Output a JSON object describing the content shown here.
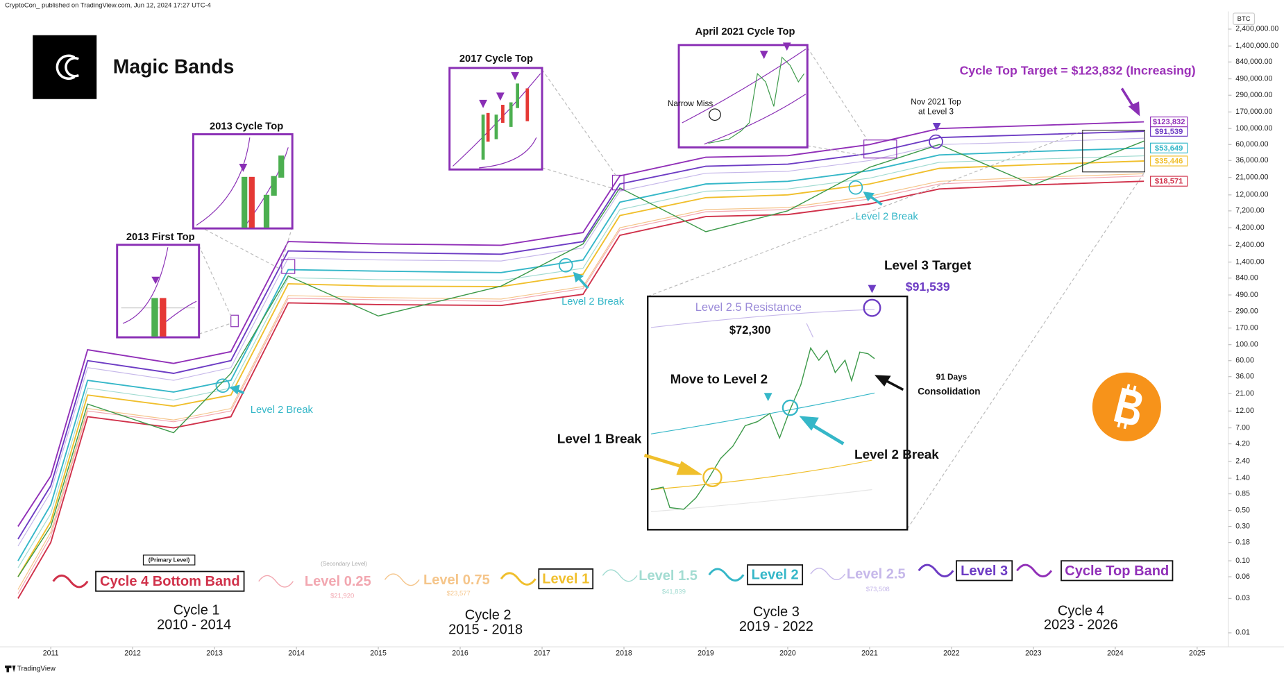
{
  "header": "CryptoCon_ published on TradingView.com, Jun 12, 2024 17:27 UTC-4",
  "footer": "TradingView",
  "chart_data": {
    "type": "line",
    "title": "Magic Bands",
    "symbol": "BTC",
    "log_scale": true,
    "grid": false,
    "price_color": "#3d9a4a",
    "x": [
      2010.6,
      2011.0,
      2011.45,
      2012.5,
      2013.2,
      2013.9,
      2015.0,
      2016.5,
      2017.5,
      2017.95,
      2019.0,
      2020.0,
      2021.0,
      2021.85,
      2023.0,
      2024.35
    ],
    "values": [
      0.06,
      0.3,
      15,
      6,
      40,
      900,
      250,
      650,
      2500,
      15000,
      3700,
      7200,
      29000,
      60000,
      16500,
      67000
    ],
    "series": [
      {
        "name": "Cycle 4 Bottom Band",
        "color": "#d0314a",
        "boxed": true,
        "tag": true,
        "current": 18571,
        "current_label": "$18,571",
        "values": [
          0.03,
          0.18,
          10,
          7,
          10,
          380,
          360,
          350,
          500,
          3300,
          6000,
          6400,
          9000,
          14500,
          16500,
          18571
        ]
      },
      {
        "name": "Level 0.25",
        "color": "#f2a7b0",
        "boxed": false,
        "tag": false,
        "current": 21920,
        "current_label": "$21,920",
        "values": [
          0.035,
          0.22,
          12,
          8.5,
          12,
          440,
          420,
          400,
          600,
          3900,
          7000,
          7500,
          10500,
          17000,
          19500,
          21920
        ]
      },
      {
        "name": "Level 0.75",
        "color": "#f5c58a",
        "boxed": false,
        "tag": false,
        "current": 23577,
        "current_label": "$23,577",
        "values": [
          0.04,
          0.25,
          13,
          9,
          13,
          480,
          450,
          430,
          640,
          4200,
          7500,
          8000,
          11500,
          18500,
          21000,
          23577
        ]
      },
      {
        "name": "Level 1",
        "color": "#f0bf2c",
        "boxed": true,
        "tag": true,
        "current": 35446,
        "current_label": "$35,446",
        "values": [
          0.06,
          0.35,
          20,
          14,
          20,
          700,
          650,
          640,
          950,
          6200,
          11000,
          12000,
          17000,
          28000,
          31500,
          35446
        ]
      },
      {
        "name": "Level 1.5",
        "color": "#a3dcd2",
        "boxed": false,
        "tag": false,
        "current": 41839,
        "current_label": "$41,839",
        "values": [
          0.08,
          0.45,
          25,
          17,
          25,
          850,
          800,
          780,
          1150,
          7500,
          13500,
          14500,
          20500,
          34000,
          37500,
          41839
        ]
      },
      {
        "name": "Level 2",
        "color": "#35b7c8",
        "boxed": true,
        "tag": true,
        "current": 53649,
        "current_label": "$53,649",
        "values": [
          0.1,
          0.6,
          32,
          22,
          32,
          1100,
          1050,
          1000,
          1500,
          9500,
          17000,
          18500,
          26000,
          43000,
          48000,
          53649
        ]
      },
      {
        "name": "Level 2.5",
        "color": "#c6b8ea",
        "boxed": false,
        "tag": false,
        "current": 73508,
        "current_label": "$73,508",
        "values": [
          0.16,
          0.9,
          48,
          32,
          48,
          1600,
          1500,
          1450,
          2200,
          13500,
          24000,
          25500,
          36000,
          60000,
          65000,
          73508
        ]
      },
      {
        "name": "Level 3",
        "color": "#6d3cc4",
        "boxed": true,
        "tag": true,
        "current": 91539,
        "current_label": "$91,539",
        "values": [
          0.2,
          1.1,
          60,
          40,
          60,
          2000,
          1900,
          1800,
          2700,
          17000,
          30000,
          32000,
          45000,
          75000,
          82000,
          91539
        ]
      },
      {
        "name": "Cycle Top Band",
        "color": "#9130b8",
        "boxed": true,
        "tag": true,
        "current": 123832,
        "current_label": "$123,832",
        "values": [
          0.3,
          1.5,
          85,
          55,
          80,
          2700,
          2500,
          2400,
          3600,
          22000,
          40000,
          42000,
          60000,
          100000,
          110000,
          123832
        ]
      }
    ],
    "xlim": [
      2010.52,
      2025.38
    ],
    "xticks": [
      2011,
      2012,
      2013,
      2014,
      2015,
      2016,
      2017,
      2018,
      2019,
      2020,
      2021,
      2022,
      2023,
      2024,
      2025
    ],
    "ylim": [
      0.0064,
      3800000
    ],
    "yticks": [
      {
        "value": 2400000,
        "label": "2,400,000.00"
      },
      {
        "value": 1400000,
        "label": "1,400,000.00"
      },
      {
        "value": 840000,
        "label": "840,000.00"
      },
      {
        "value": 490000,
        "label": "490,000.00"
      },
      {
        "value": 290000,
        "label": "290,000.00"
      },
      {
        "value": 170000,
        "label": "170,000.00"
      },
      {
        "value": 100000,
        "label": "100,000.00"
      },
      {
        "value": 60000,
        "label": "60,000.00"
      },
      {
        "value": 36000,
        "label": "36,000.00"
      },
      {
        "value": 21000,
        "label": "21,000.00"
      },
      {
        "value": 12000,
        "label": "12,000.00"
      },
      {
        "value": 7200,
        "label": "7,200.00"
      },
      {
        "value": 4200,
        "label": "4,200.00"
      },
      {
        "value": 2400,
        "label": "2,400.00"
      },
      {
        "value": 1400,
        "label": "1,400.00"
      },
      {
        "value": 840,
        "label": "840.00"
      },
      {
        "value": 490,
        "label": "490.00"
      },
      {
        "value": 290,
        "label": "290.00"
      },
      {
        "value": 170,
        "label": "170.00"
      },
      {
        "value": 100,
        "label": "100.00"
      },
      {
        "value": 60,
        "label": "60.00"
      },
      {
        "value": 36,
        "label": "36.00"
      },
      {
        "value": 21,
        "label": "21.00"
      },
      {
        "value": 12,
        "label": "12.00"
      },
      {
        "value": 7,
        "label": "7.00"
      },
      {
        "value": 4.2,
        "label": "4.20"
      },
      {
        "value": 2.4,
        "label": "2.40"
      },
      {
        "value": 1.4,
        "label": "1.40"
      },
      0.85,
      {
        "value": 0.5,
        "label": "0.50"
      },
      {
        "value": 0.3,
        "label": "0.30"
      },
      0.18,
      {
        "value": 0.1,
        "label": "0.10"
      },
      0.06,
      0.03,
      0.01
    ],
    "annotations": [
      "2013 First Top",
      "2013 Cycle Top",
      "2017 Cycle Top",
      "April 2021 Cycle Top",
      "Narrow Miss",
      "Nov 2021 Top",
      "at Level 3",
      "Cycle Top Target = $123,832 (Increasing)",
      "Level 2 Break",
      "Level 2 Break",
      "Level 2 Break",
      "Level 3 Target",
      "$91,539",
      "Level 2.5 Resistance",
      "$72,300",
      "Move to  Level 2",
      "Level 1 Break",
      "Level 2 Break",
      "91 Days",
      "Consolidation",
      "Cycle 1",
      "2010 - 2014",
      "Cycle 2",
      "2015 - 2018",
      "Cycle 3",
      "2019 - 2022",
      "Cycle 4",
      "2023 - 2026",
      "(Primary Level)",
      "(Secondary Level)"
    ]
  }
}
